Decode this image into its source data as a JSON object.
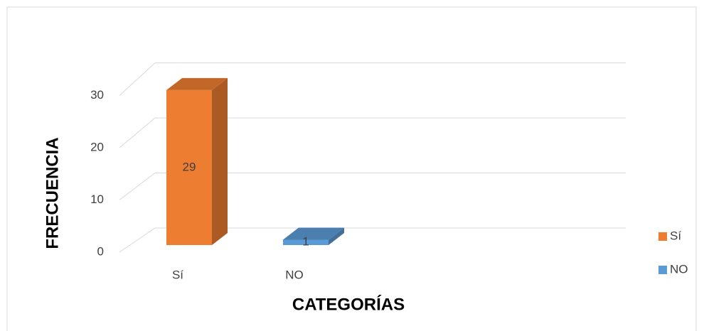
{
  "chart_data": {
    "type": "bar3d",
    "categories": [
      "Sí",
      "NO"
    ],
    "series": [
      {
        "name": "Sí",
        "color": "#ed7d31",
        "values": [
          29,
          null
        ]
      },
      {
        "name": "NO",
        "color": "#5b9bd5",
        "values": [
          null,
          1
        ]
      }
    ],
    "x_label": "CATEGORÍAS",
    "y_label": "FRECUENCIA",
    "ylim": [
      0,
      30
    ],
    "yticks": [
      0,
      10,
      20,
      30
    ],
    "grid": true,
    "legend": "right",
    "data_labels": true
  }
}
